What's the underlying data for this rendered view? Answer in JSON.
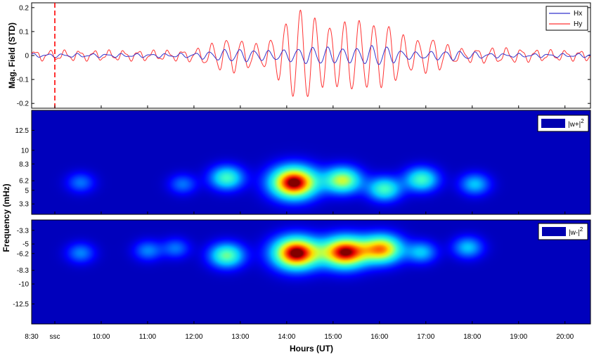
{
  "chart_data": [
    {
      "type": "line",
      "title": "",
      "ylabel": "Mag. Field (STD)",
      "ylim": [
        -0.22,
        0.22
      ],
      "yticks": [
        "0.2",
        "0.1",
        "0",
        "-0.1",
        "-0.2"
      ],
      "yvalues": [
        0.2,
        0.1,
        0,
        -0.1,
        -0.2
      ],
      "legend": "top-right",
      "series": [
        {
          "name": "Hx",
          "color": "#3333cc"
        },
        {
          "name": "Hy",
          "color": "#ff3333"
        }
      ],
      "event_marker": {
        "label": "ssc",
        "time": 9.0,
        "color": "#ff0000"
      }
    },
    {
      "type": "heatmap",
      "legend_label": "|w+|",
      "legend_sup": "2",
      "ytick_labels": [
        "12.5",
        "10",
        "8.3",
        "6.2",
        "5",
        "3.3"
      ],
      "ytick_values": [
        12.5,
        10,
        8.3,
        6.2,
        5,
        3.3
      ],
      "colorscale": [
        "#00008b",
        "#0000ff",
        "#00bfff",
        "#00ffff",
        "#7fff7f",
        "#ffff00",
        "#ff7f00",
        "#ff0000",
        "#8b0000"
      ],
      "blobs": [
        {
          "t": 9.55,
          "f": 6.0,
          "a": 0.2
        },
        {
          "t": 11.75,
          "f": 5.8,
          "a": 0.2
        },
        {
          "t": 12.7,
          "f": 6.6,
          "a": 0.45
        },
        {
          "t": 14.15,
          "f": 6.0,
          "a": 1.0
        },
        {
          "t": 15.2,
          "f": 6.3,
          "a": 0.6
        },
        {
          "t": 16.1,
          "f": 5.2,
          "a": 0.45
        },
        {
          "t": 16.9,
          "f": 6.4,
          "a": 0.45
        },
        {
          "t": 18.05,
          "f": 5.8,
          "a": 0.3
        }
      ]
    },
    {
      "type": "heatmap",
      "legend_label": "|w-|",
      "legend_sup": "2",
      "ytick_labels": [
        "-3.3",
        "-5",
        "-6.2",
        "-8.3",
        "-10",
        "-12.5"
      ],
      "ytick_values": [
        -3.3,
        -5,
        -6.2,
        -8.3,
        -10,
        -12.5
      ],
      "blobs": [
        {
          "t": 9.55,
          "f": -6.1,
          "a": 0.22
        },
        {
          "t": 11.0,
          "f": -5.8,
          "a": 0.22
        },
        {
          "t": 11.6,
          "f": -5.5,
          "a": 0.2
        },
        {
          "t": 12.7,
          "f": -6.4,
          "a": 0.5
        },
        {
          "t": 14.2,
          "f": -6.1,
          "a": 1.0
        },
        {
          "t": 15.25,
          "f": -6.0,
          "a": 0.95
        },
        {
          "t": 16.05,
          "f": -5.6,
          "a": 0.75
        },
        {
          "t": 16.9,
          "f": -6.0,
          "a": 0.3
        },
        {
          "t": 17.9,
          "f": -5.4,
          "a": 0.3
        }
      ]
    }
  ],
  "x_axis": {
    "label": "Hours (UT)",
    "range": [
      8.5,
      20.55
    ],
    "tick_labels": [
      "8:30",
      "ssc",
      "10:00",
      "11:00",
      "12:00",
      "13:00",
      "14:00",
      "15:00",
      "16:00",
      "17:00",
      "18:00",
      "19:00",
      "20:00"
    ],
    "tick_values": [
      8.5,
      9.0,
      10,
      11,
      12,
      13,
      14,
      15,
      16,
      17,
      18,
      19,
      20
    ]
  },
  "shared_ylabel": "Frequency (mHz)"
}
